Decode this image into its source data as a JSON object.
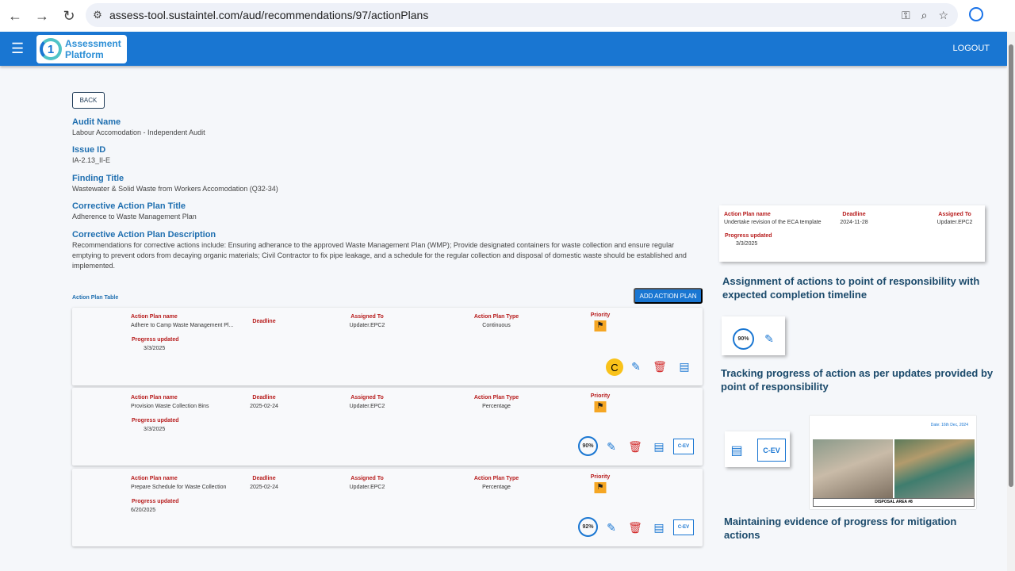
{
  "browser": {
    "url": "assess-tool.sustaintel.com/aud/recommendations/97/actionPlans"
  },
  "app": {
    "logo_line1": "Assessment",
    "logo_line2": "Platform",
    "logo_mark": "1",
    "logout": "LOGOUT"
  },
  "page": {
    "back": "BACK",
    "fields": [
      {
        "label": "Audit Name",
        "value": "Labour Accomodation - Independent Audit"
      },
      {
        "label": "Issue ID",
        "value": "IA-2.13_II-E"
      },
      {
        "label": "Finding Title",
        "value": "Wastewater & Solid Waste from Workers Accomodation (Q32-34)"
      },
      {
        "label": "Corrective Action Plan Title",
        "value": "Adherence to Waste Management Plan"
      },
      {
        "label": "Corrective Action Plan Description",
        "value": "Recommendations for corrective actions include: Ensuring adherance to the approved Waste Management Plan (WMP); Provide designated containers for waste collection and ensure regular emptying to prevent odors from decaying organic materials; Civil Contractor to fix pipe leakage, and a schedule for the regular collection and disposal of domestic waste should be established and implemented."
      }
    ],
    "table_title": "Action Plan Table",
    "add_button": "ADD ACTION PLAN"
  },
  "headers": {
    "name": "Action Plan name",
    "deadline": "Deadline",
    "assigned": "Assigned To",
    "type": "Action Plan Type",
    "priority": "Priority",
    "progress": "Progress updated"
  },
  "plans": [
    {
      "name": "Adhere to Camp Waste Management Pl...",
      "deadline": "",
      "assigned": "Updater.EPC2",
      "type": "Continuous",
      "progress_date": "3/3/2025",
      "status": "C"
    },
    {
      "name": "Provision Waste Collection Bins",
      "deadline": "2025-02-24",
      "assigned": "Updater.EPC2",
      "type": "Percentage",
      "progress_date": "3/3/2025",
      "percent": "90%",
      "evidence": "C-EV"
    },
    {
      "name": "Prepare Schedule for Waste Collection",
      "deadline": "2025-02-24",
      "assigned": "Updater.EPC2",
      "type": "Percentage",
      "progress_date": "6/20/2025",
      "percent": "92%",
      "evidence": "C-EV"
    }
  ],
  "callouts": {
    "example": {
      "name": "Undertake revision of the ECA template",
      "deadline": "2024-11-28",
      "assigned": "Updater.EPC2",
      "progress_date": "3/3/2025"
    },
    "caption1": "Assignment of actions to point of responsibility with expected completion timeline",
    "percent": "90%",
    "caption2": "Tracking progress of action as per updates provided by point of responsibility",
    "evidence": "C-EV",
    "photo_date": "Date: 16th Dec, 2024",
    "photo_caption": "DISPOSAL AREA #8",
    "caption3": "Maintaining evidence of progress for mitigation actions"
  },
  "colors": {
    "primary": "#1976d2",
    "label_red": "#b71c1c",
    "priority": "#f5a623",
    "delete": "#d32f2f"
  }
}
